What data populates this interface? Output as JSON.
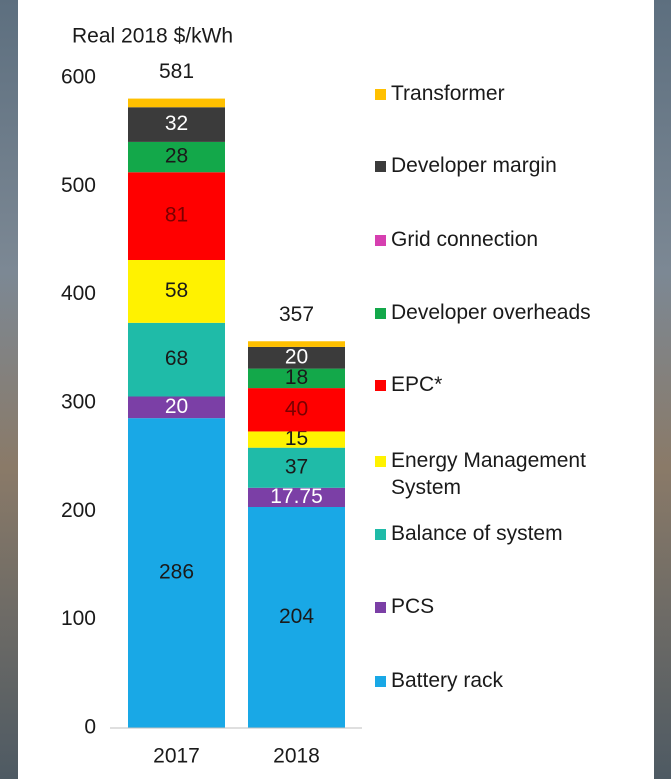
{
  "chart_data": {
    "type": "stacked_bar",
    "y_axis_label": "Real 2018 $/kWh",
    "categories": [
      "2017",
      "2018"
    ],
    "totals": [
      581,
      357
    ],
    "ylim": [
      0,
      600
    ],
    "yticks": [
      0,
      100,
      200,
      300,
      400,
      500,
      600
    ],
    "grid": false,
    "series": [
      {
        "name": "Battery rack",
        "color": "#19a8e6",
        "label_color": "#1a1a1a",
        "show_labels": true,
        "values": [
          286,
          204
        ]
      },
      {
        "name": "PCS",
        "color": "#7b3fa6",
        "label_color": "#ffffff",
        "show_labels": true,
        "values": [
          20,
          17.75
        ]
      },
      {
        "name": "Balance of system",
        "color": "#1fbba8",
        "label_color": "#1a1a1a",
        "show_labels": true,
        "values": [
          68,
          37
        ]
      },
      {
        "name": "Energy Management System",
        "color": "#fff200",
        "label_color": "#1a1a1a",
        "show_labels": true,
        "values": [
          58,
          15
        ]
      },
      {
        "name": "EPC*",
        "color": "#ff0000",
        "label_color": "#7a0000",
        "show_labels": true,
        "values": [
          81,
          40
        ]
      },
      {
        "name": "Developer overheads",
        "color": "#13a84a",
        "label_color": "#1a1a1a",
        "show_labels": true,
        "values": [
          28,
          18
        ]
      },
      {
        "name": "Grid connection",
        "color": "#d63fb0",
        "label_color": "#ffffff",
        "show_labels": false,
        "values": [
          0,
          0
        ]
      },
      {
        "name": "Developer margin",
        "color": "#3b3b3b",
        "label_color": "#ffffff",
        "show_labels": true,
        "values": [
          32,
          20
        ]
      },
      {
        "name": "Transformer",
        "color": "#ffc000",
        "label_color": "#1a1a1a",
        "show_labels": false,
        "values": [
          8,
          5.25
        ]
      }
    ]
  }
}
